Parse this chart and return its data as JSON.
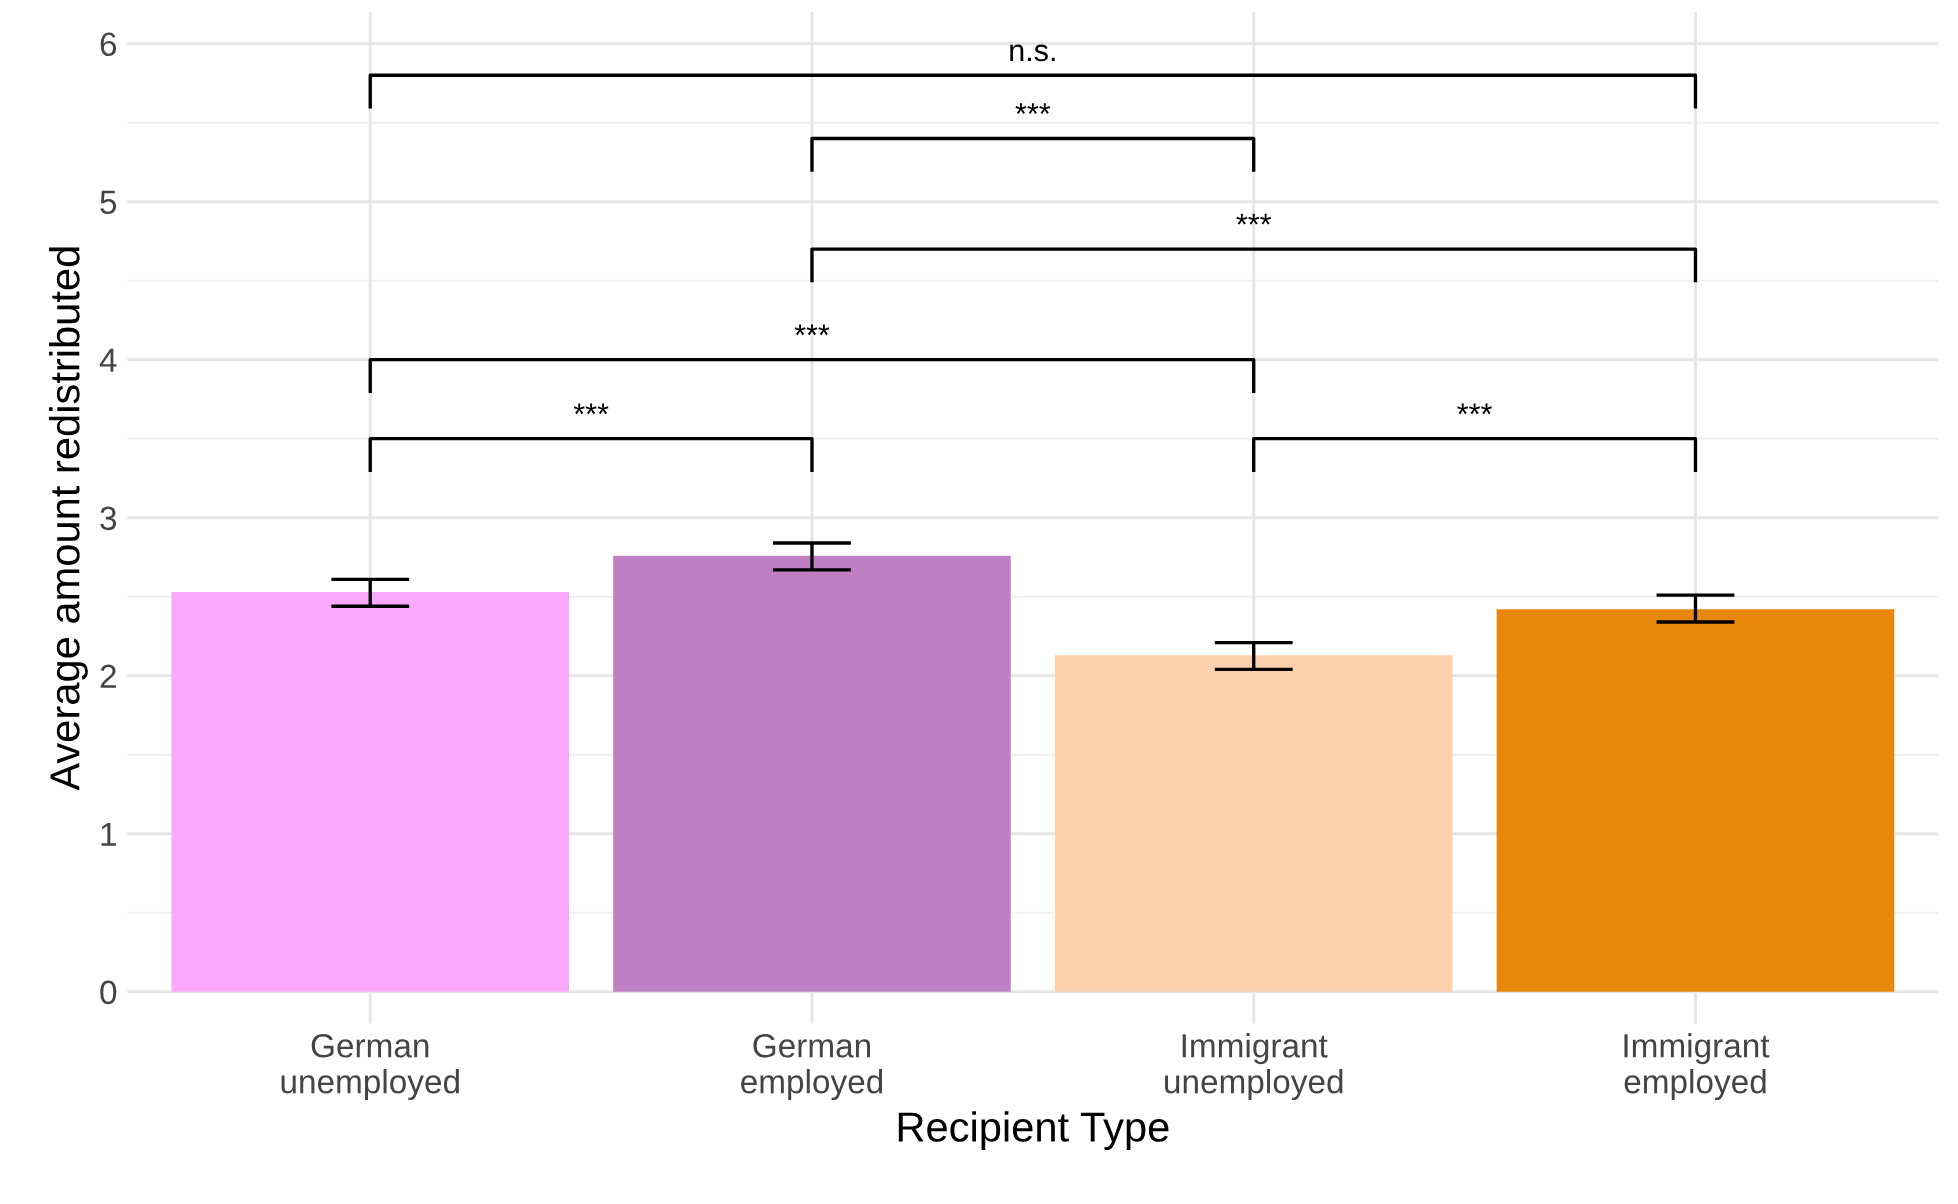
{
  "chart_data": {
    "type": "bar",
    "xlabel": "Recipient Type",
    "ylabel": "Average amount redistributed",
    "categories": [
      "German\nunemployed",
      "German\nemployed",
      "Immigrant\nunemployed",
      "Immigrant\nemployed"
    ],
    "values": [
      2.53,
      2.76,
      2.13,
      2.42
    ],
    "colors": [
      "#f9a8fb",
      "#c080c4",
      "#fdd1ac",
      "#e8870c"
    ],
    "errors": [
      [
        2.44,
        2.61
      ],
      [
        2.67,
        2.84
      ],
      [
        2.04,
        2.21
      ],
      [
        2.34,
        2.51
      ]
    ],
    "ylim": [
      -0.2,
      6.2
    ],
    "yticks": [
      0,
      1,
      2,
      3,
      4,
      5,
      6
    ],
    "grid": true,
    "annotations": [
      "n.s.",
      "***",
      "***",
      "***",
      "***",
      "***"
    ]
  }
}
